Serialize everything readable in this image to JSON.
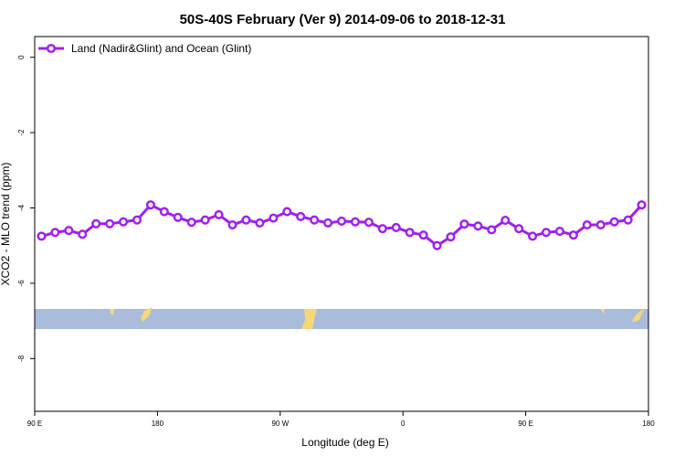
{
  "chart_data": {
    "type": "line",
    "title": "50S-40S February (Ver 9)   2014-09-06 to 2018-12-31",
    "x_label": "Longitude (deg E)",
    "y_label": "XCO2 - MLO trend (ppm)",
    "x": [
      95,
      105,
      115,
      125,
      135,
      145,
      155,
      165,
      175,
      185,
      195,
      205,
      215,
      225,
      235,
      245,
      255,
      265,
      275,
      285,
      295,
      305,
      315,
      325,
      335,
      345,
      355,
      365,
      375,
      385,
      395,
      405,
      415,
      425,
      435,
      445,
      455,
      465,
      475,
      485,
      495,
      505,
      515,
      525,
      535
    ],
    "series": [
      {
        "name": "Land (Nadir&Glint) and Ocean (Glint)",
        "color": "#a020f0",
        "values": [
          -4.75,
          -4.65,
          -4.6,
          -4.7,
          -4.42,
          -4.42,
          -4.37,
          -4.32,
          -3.92,
          -4.1,
          -4.25,
          -4.38,
          -4.32,
          -4.18,
          -4.45,
          -4.32,
          -4.4,
          -4.27,
          -4.1,
          -4.23,
          -4.32,
          -4.4,
          -4.35,
          -4.37,
          -4.38,
          -4.55,
          -4.52,
          -4.65,
          -4.72,
          -5.0,
          -4.77,
          -4.43,
          -4.48,
          -4.58,
          -4.33,
          -4.55,
          -4.75,
          -4.65,
          -4.62,
          -4.72,
          -4.45,
          -4.45,
          -4.37,
          -4.32,
          -3.92
        ]
      }
    ],
    "xlim": [
      90,
      540
    ],
    "xticks": [
      {
        "value": 90,
        "label": "90 E"
      },
      {
        "value": 180,
        "label": "180"
      },
      {
        "value": 270,
        "label": "90 W"
      },
      {
        "value": 360,
        "label": "0"
      },
      {
        "value": 450,
        "label": "90 E"
      },
      {
        "value": 540,
        "label": "180"
      }
    ],
    "ylim": [
      -9.4,
      0.55
    ],
    "yticks": [
      0,
      -2,
      -4,
      -6,
      -8
    ],
    "legend": "top-left"
  }
}
